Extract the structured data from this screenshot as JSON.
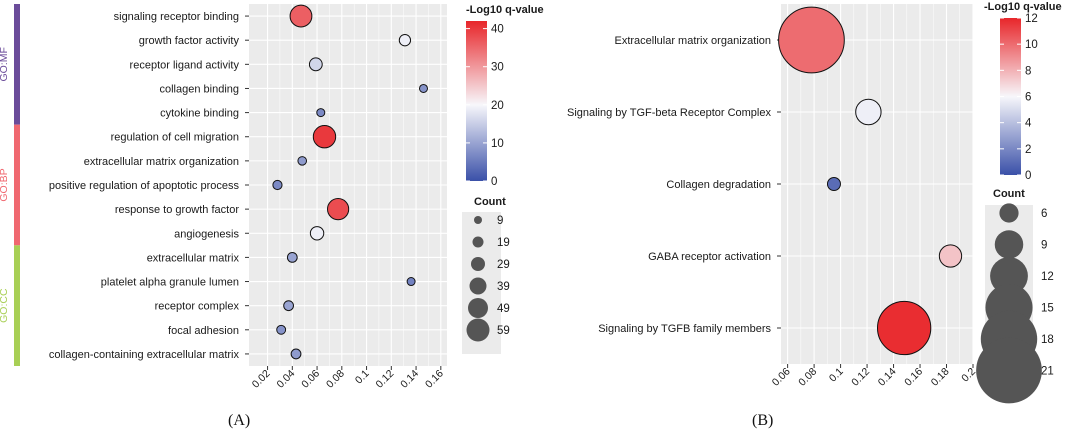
{
  "chart_data": [
    {
      "type": "scatter",
      "panel_caption": "(A)",
      "xlim": [
        0.005,
        0.165
      ],
      "xticks": [
        0.02,
        0.04,
        0.06,
        0.08,
        0.1,
        0.12,
        0.14,
        0.16
      ],
      "xtick_labels": [
        "0.02",
        "0.04",
        "0.06",
        "0.08",
        "0.1",
        "0.12",
        "0.14",
        "0.16"
      ],
      "categories": [
        "signaling receptor binding",
        "growth factor activity",
        "receptor ligand activity",
        "collagen binding",
        "cytokine binding",
        "regulation of cell migration",
        "extracellular matrix organization",
        "positive regulation of apoptotic process",
        "response to growth factor",
        "angiogenesis",
        "extracellular matrix",
        "platelet alpha granule lumen",
        "receptor complex",
        "focal adhesion",
        "collagen-containing extracellular matrix"
      ],
      "x": [
        0.047,
        0.131,
        0.059,
        0.146,
        0.063,
        0.066,
        0.048,
        0.028,
        0.077,
        0.06,
        0.04,
        0.136,
        0.037,
        0.031,
        0.043
      ],
      "count": [
        55,
        20,
        25,
        9,
        9,
        57,
        11,
        13,
        53,
        27,
        15,
        9,
        15,
        12,
        15
      ],
      "neg_log10_q": [
        36,
        19,
        16,
        8,
        7,
        40,
        9,
        7,
        38,
        19,
        10,
        6,
        10,
        8,
        9
      ],
      "groups": [
        {
          "name": "GO:MF",
          "start": 0,
          "end": 4,
          "color": "#6b4c9a"
        },
        {
          "name": "GO:BP",
          "start": 5,
          "end": 9,
          "color": "#f06870"
        },
        {
          "name": "GO:CC",
          "start": 10,
          "end": 14,
          "color": "#a8cf55"
        }
      ],
      "color_legend": {
        "title": "-Log10 q-value",
        "range": [
          0,
          42
        ],
        "mid": 20,
        "ticks": [
          0,
          10,
          20,
          30,
          40
        ],
        "tick_labels": [
          "0",
          "10",
          "20",
          "30",
          "40"
        ]
      },
      "size_legend": {
        "title": "Count",
        "values": [
          9,
          19,
          29,
          39,
          49,
          59
        ],
        "labels": [
          "9",
          "19",
          "29",
          "39",
          "49",
          "59"
        ]
      }
    },
    {
      "type": "scatter",
      "panel_caption": "(B)",
      "xlim": [
        0.055,
        0.2
      ],
      "xticks": [
        0.06,
        0.08,
        0.1,
        0.12,
        0.14,
        0.16,
        0.18,
        0.2
      ],
      "xtick_labels": [
        "0.06",
        "0.08",
        "0.1",
        "0.12",
        "0.14",
        "0.16",
        "0.18",
        "0.2"
      ],
      "categories": [
        "Extracellular matrix organization",
        "Signaling by TGF-beta Receptor Complex",
        "Collagen degradation",
        "GABA receptor activation",
        "Signaling by TGFB family members"
      ],
      "x": [
        0.078,
        0.121,
        0.095,
        0.183,
        0.148
      ],
      "count": [
        21,
        8,
        4,
        7,
        17
      ],
      "neg_log10_q": [
        10.0,
        5.7,
        1.0,
        7.5,
        11.8
      ],
      "color_legend": {
        "title": "-Log10 q-value",
        "range": [
          0,
          12
        ],
        "mid": 6,
        "ticks": [
          0,
          2,
          4,
          6,
          8,
          10,
          12
        ],
        "tick_labels": [
          "0",
          "2",
          "4",
          "6",
          "8",
          "10",
          "12"
        ]
      },
      "size_legend": {
        "title": "Count",
        "values": [
          6,
          9,
          12,
          15,
          18,
          21
        ],
        "labels": [
          "6",
          "9",
          "12",
          "15",
          "18",
          "21"
        ]
      }
    }
  ],
  "colors": {
    "low": "#3a50a8",
    "mid": "#f7f7fb",
    "high": "#e8262a",
    "panel": "#ebebeb",
    "grid": "#ffffff",
    "count_legend": "#555555"
  }
}
